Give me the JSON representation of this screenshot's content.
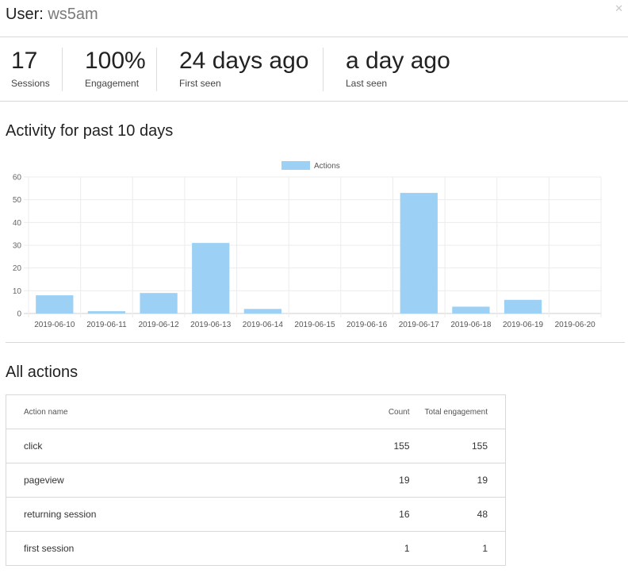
{
  "header": {
    "prefix": "User:",
    "username": "ws5am",
    "close_icon": "close-icon"
  },
  "stats": [
    {
      "value": "17",
      "label": "Sessions"
    },
    {
      "value": "100%",
      "label": "Engagement"
    },
    {
      "value": "24 days ago",
      "label": "First seen"
    },
    {
      "value": "a day ago",
      "label": "Last seen"
    }
  ],
  "activity": {
    "title": "Activity for past 10 days"
  },
  "chart_data": {
    "type": "bar",
    "categories": [
      "2019-06-10",
      "2019-06-11",
      "2019-06-12",
      "2019-06-13",
      "2019-06-14",
      "2019-06-15",
      "2019-06-16",
      "2019-06-17",
      "2019-06-18",
      "2019-06-19",
      "2019-06-20"
    ],
    "series": [
      {
        "name": "Actions",
        "values": [
          8,
          1,
          9,
          31,
          2,
          0,
          0,
          53,
          3,
          6,
          0
        ],
        "color": "#9dd0f5"
      }
    ],
    "ylim": [
      0,
      60
    ],
    "yticks": [
      0,
      10,
      20,
      30,
      40,
      50,
      60
    ],
    "grid": true,
    "legend": "top-center"
  },
  "all_actions": {
    "title": "All actions",
    "columns": [
      "Action name",
      "Count",
      "Total engagement"
    ],
    "rows": [
      {
        "name": "click",
        "count": "155",
        "engagement": "155"
      },
      {
        "name": "pageview",
        "count": "19",
        "engagement": "19"
      },
      {
        "name": "returning session",
        "count": "16",
        "engagement": "48"
      },
      {
        "name": "first session",
        "count": "1",
        "engagement": "1"
      }
    ]
  }
}
